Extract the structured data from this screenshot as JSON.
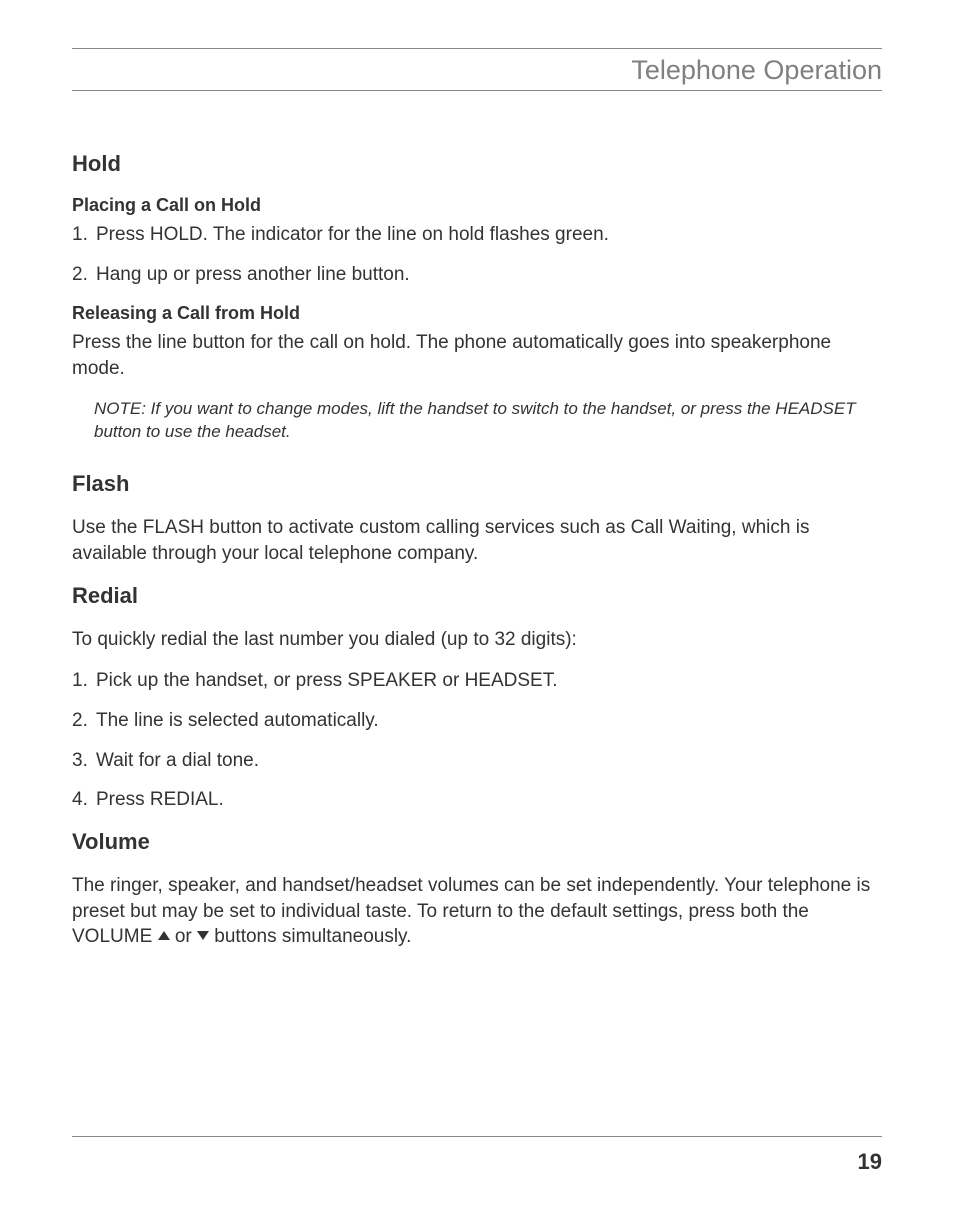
{
  "header": {
    "title": "Telephone Operation"
  },
  "sections": {
    "hold": {
      "title": "Hold",
      "placing": {
        "subhead": "Placing a Call on Hold",
        "items": [
          "Press HOLD. The indicator for the line on hold flashes green.",
          "Hang up or press another line button."
        ]
      },
      "releasing": {
        "subhead": "Releasing a Call from Hold",
        "body": "Press the line button for the call on hold. The phone automatically goes into speakerphone mode.",
        "note": "NOTE: If you want to change modes, lift the handset to switch to the handset, or press the HEADSET button to use the headset."
      }
    },
    "flash": {
      "title": "Flash",
      "body": "Use the FLASH button to activate custom calling services such as Call Waiting, which is available through your local telephone company."
    },
    "redial": {
      "title": "Redial",
      "lead": "To quickly redial the last number you dialed (up to 32 digits):",
      "items": [
        "Pick up the handset, or press SPEAKER or HEADSET.",
        "The line is selected automatically.",
        "Wait for a dial tone.",
        "Press REDIAL."
      ]
    },
    "volume": {
      "title": "Volume",
      "body_pre": "The ringer, speaker, and handset/headset volumes can be set independently. Your telephone is preset but may be set to individual taste. To return to the default settings, press both the VOLUME ",
      "body_mid": " or ",
      "body_post": " buttons simultaneously."
    }
  },
  "footer": {
    "page_number": "19"
  }
}
